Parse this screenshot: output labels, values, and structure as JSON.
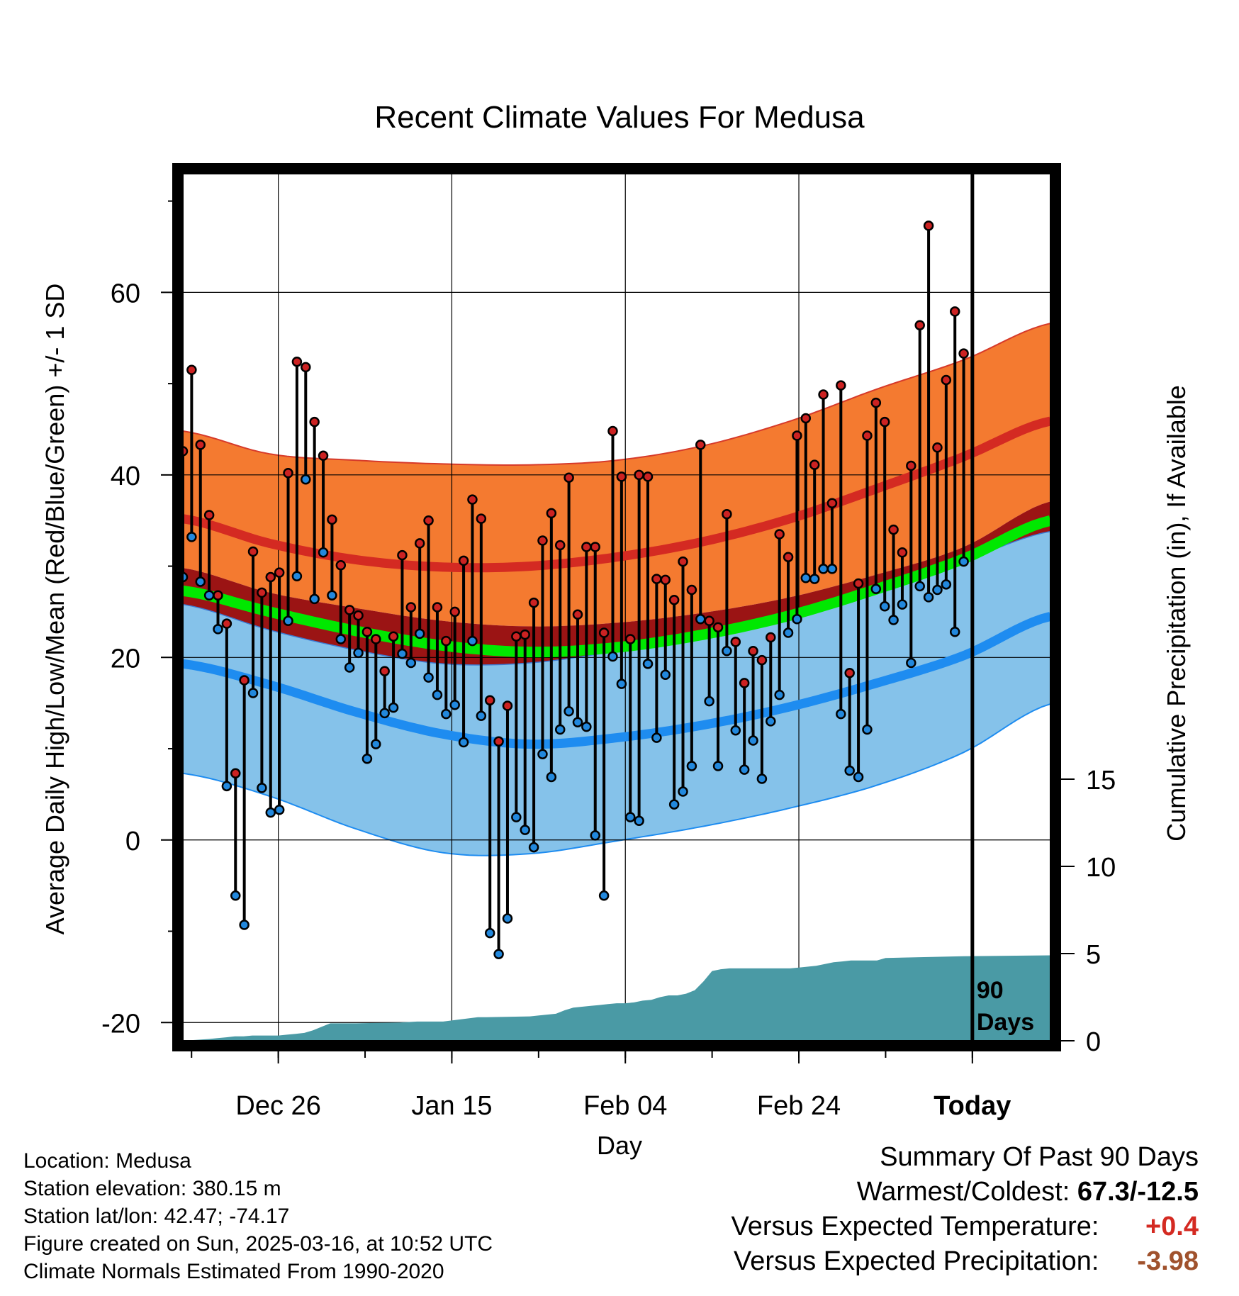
{
  "chart_data": {
    "type": "line",
    "title": "Recent Climate Values For Medusa",
    "xlabel": "Day",
    "ylabel_left": "Average Daily High/Low/Mean (Red/Blue/Green) +/- 1 SD",
    "ylabel_right": "Cumulative Precipitation (in), If Available",
    "x_ticks": [
      {
        "day": 11,
        "label": "Dec 26"
      },
      {
        "day": 31,
        "label": "Jan 15"
      },
      {
        "day": 51,
        "label": "Feb 04"
      },
      {
        "day": 71,
        "label": "Feb 24"
      },
      {
        "day": 91,
        "label": "Today",
        "bold": true
      }
    ],
    "xlim": [
      0,
      100
    ],
    "ylim_left": [
      -22,
      73
    ],
    "left_ticks": [
      -20,
      0,
      20,
      40,
      60
    ],
    "ylim_right": [
      0,
      100
    ],
    "right_ticks": [
      0,
      5,
      10,
      15
    ],
    "today_marker": {
      "day": 91,
      "label_line1": "90",
      "label_line2": "Days"
    },
    "normals": {
      "days": [
        0,
        10,
        20,
        30,
        40,
        50,
        60,
        70,
        80,
        90,
        100
      ],
      "high_mean": [
        35.2,
        32.5,
        30.7,
        29.9,
        30.0,
        31.0,
        32.7,
        35.2,
        38.5,
        42.0,
        45.9
      ],
      "high_upper": [
        44.8,
        42.3,
        41.6,
        41.2,
        41.1,
        41.6,
        43.2,
        45.9,
        49.4,
        52.6,
        56.6
      ],
      "high_lower": [
        29.8,
        27.1,
        25.4,
        24.0,
        23.4,
        23.8,
        24.9,
        26.6,
        29.1,
        32.1,
        37.1
      ],
      "mean": [
        27.3,
        25.0,
        22.9,
        21.3,
        20.6,
        21.1,
        22.5,
        24.6,
        27.5,
        30.8,
        35.0
      ],
      "low_mean": [
        19.3,
        17.0,
        14.0,
        11.6,
        10.5,
        11.2,
        12.6,
        14.6,
        17.2,
        20.2,
        24.5
      ],
      "low_upper": [
        25.8,
        23.0,
        20.8,
        19.3,
        19.4,
        20.7,
        22.4,
        24.6,
        27.6,
        30.6,
        33.8
      ],
      "low_lower": [
        7.3,
        4.8,
        1.2,
        -1.4,
        -1.5,
        -0.1,
        1.5,
        3.5,
        6.0,
        9.6,
        14.9
      ]
    },
    "series": [
      {
        "name": "High",
        "color": "#cc2222",
        "values": [
          42.6,
          51.5,
          43.3,
          35.6,
          26.8,
          23.7,
          7.3,
          17.5,
          31.6,
          27.1,
          28.8,
          29.3,
          40.2,
          52.4,
          51.8,
          45.8,
          42.1,
          35.1,
          30.1,
          25.2,
          24.6,
          22.8,
          22.0,
          18.5,
          22.3,
          31.2,
          25.5,
          32.5,
          35.0,
          25.5,
          21.8,
          25.0,
          30.6,
          37.3,
          35.2,
          15.3,
          10.8,
          14.7,
          22.3,
          22.5,
          26.0,
          32.8,
          35.8,
          32.3,
          39.7,
          24.7,
          32.1,
          32.1,
          22.7,
          44.8,
          39.8,
          22.0,
          40.0,
          39.8,
          28.6,
          28.5,
          26.3,
          30.5,
          27.4,
          43.3,
          24.0,
          23.3,
          35.7,
          21.7,
          17.2,
          20.7,
          19.7,
          22.2,
          33.5,
          31.0,
          44.3,
          46.2,
          41.1,
          48.8,
          36.9,
          49.8,
          18.3,
          28.1,
          44.3,
          47.9,
          45.8,
          34.0,
          31.5,
          41.0,
          56.4,
          67.3,
          43.0,
          50.4,
          57.9,
          53.3
        ]
      },
      {
        "name": "Low",
        "color": "#2288dd",
        "values": [
          28.8,
          33.2,
          28.3,
          26.8,
          23.1,
          5.9,
          -6.1,
          -9.3,
          16.1,
          5.7,
          3.0,
          3.3,
          24.0,
          28.9,
          39.5,
          26.4,
          31.5,
          26.8,
          22.0,
          18.9,
          20.5,
          8.9,
          10.5,
          13.9,
          14.5,
          20.4,
          19.4,
          22.6,
          17.8,
          15.9,
          13.8,
          14.8,
          10.7,
          21.8,
          13.6,
          -10.2,
          -12.5,
          -8.6,
          2.5,
          1.1,
          -0.8,
          9.4,
          6.9,
          12.1,
          14.1,
          12.9,
          12.4,
          0.5,
          -6.1,
          20.1,
          17.1,
          2.5,
          2.1,
          19.3,
          11.2,
          18.1,
          3.9,
          5.3,
          8.1,
          24.2,
          15.2,
          8.1,
          20.7,
          12.0,
          7.7,
          10.9,
          6.7,
          13.0,
          15.9,
          22.7,
          24.2,
          28.7,
          28.6,
          29.7,
          29.7,
          13.8,
          7.6,
          6.9,
          12.1,
          27.5,
          25.6,
          24.1,
          25.8,
          19.4,
          27.8,
          26.6,
          27.4,
          28.0,
          22.8,
          30.5
        ]
      }
    ],
    "precipitation": {
      "days": [
        0,
        3,
        4,
        5,
        6,
        7,
        8,
        9,
        10,
        11,
        12,
        13,
        14,
        15,
        16,
        17,
        18,
        20,
        25,
        27,
        28,
        30,
        34,
        35,
        40,
        43,
        44,
        45,
        46,
        47,
        48,
        49,
        50,
        51,
        52,
        53,
        54,
        55,
        56,
        57,
        58,
        59,
        60,
        61,
        62,
        63,
        64,
        66,
        68,
        69,
        70,
        71,
        72,
        73,
        74,
        75,
        76,
        77,
        80,
        81,
        90,
        100
      ],
      "values": [
        0,
        0.1,
        0.15,
        0.2,
        0.25,
        0.25,
        0.3,
        0.3,
        0.3,
        0.3,
        0.35,
        0.4,
        0.45,
        0.6,
        0.8,
        1.0,
        1.0,
        1.0,
        1.05,
        1.1,
        1.1,
        1.1,
        1.35,
        1.35,
        1.4,
        1.55,
        1.75,
        1.9,
        1.95,
        2.0,
        2.05,
        2.1,
        2.15,
        2.15,
        2.2,
        2.3,
        2.35,
        2.5,
        2.6,
        2.6,
        2.7,
        2.9,
        3.4,
        4.0,
        4.1,
        4.15,
        4.15,
        4.15,
        4.15,
        4.15,
        4.15,
        4.2,
        4.25,
        4.3,
        4.4,
        4.5,
        4.55,
        4.6,
        4.6,
        4.75,
        4.85,
        4.9
      ]
    },
    "colors": {
      "high_band": "#f47a30",
      "high_line": "#d42a22",
      "high_edge": "#d63a2a",
      "overlap_band": "#9b1414",
      "low_band": "#85c2ea",
      "low_line": "#1e8cf0",
      "mean_line": "#00e800",
      "precip": "#4a9aa5",
      "high_dot": "#d83030",
      "low_dot": "#2a8ae0"
    }
  },
  "footer": {
    "lines": [
      "Location: Medusa",
      "Station elevation: 380.15 m",
      "Station lat/lon: 42.47; -74.17",
      "Figure created on Sun, 2025-03-16, at 10:52 UTC",
      "Climate Normals Estimated From 1990-2020"
    ]
  },
  "summary": {
    "heading": "Summary Of Past 90 Days",
    "warm_cold_label": "Warmest/Coldest:",
    "warm_cold_value": "67.3/-12.5",
    "temp_label": "Versus Expected Temperature:",
    "temp_value": "+0.4",
    "temp_color": "#d42a22",
    "precip_label": "Versus Expected Precipitation:",
    "precip_value": "-3.98",
    "precip_color": "#a0522d"
  }
}
